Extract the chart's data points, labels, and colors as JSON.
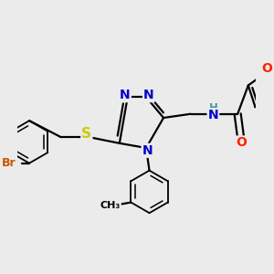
{
  "background_color": "#ebebeb",
  "atom_colors": {
    "C": "#000000",
    "N": "#0000cc",
    "O": "#ff2200",
    "S": "#cccc00",
    "Br": "#cc5500",
    "H": "#4a9a9a"
  },
  "bond_color": "#000000",
  "bond_width": 1.6,
  "font_size": 9
}
